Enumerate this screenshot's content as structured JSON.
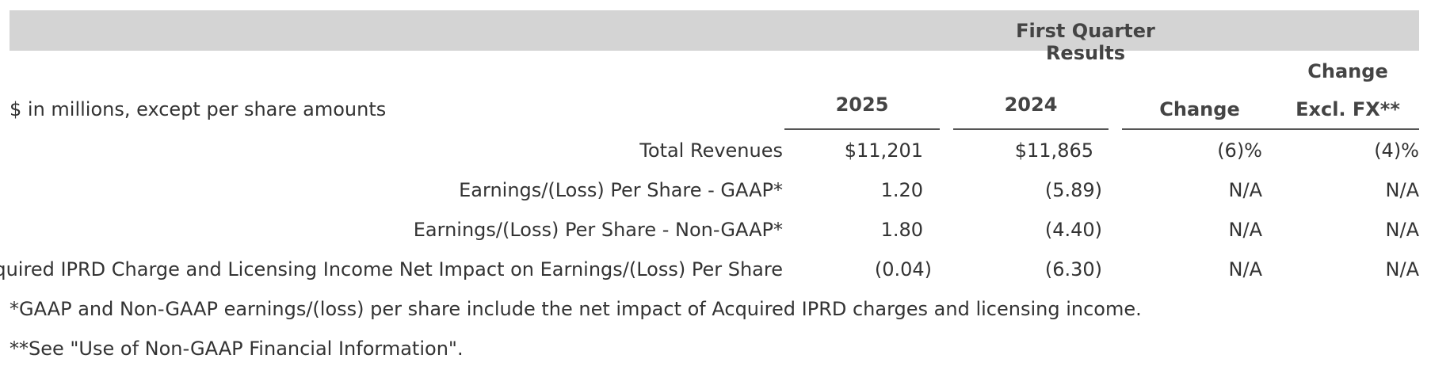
{
  "header": {
    "band_title": "First Quarter Results",
    "units": "$ in millions, except per share amounts",
    "col_2025": "2025",
    "col_2024": "2024",
    "col_change": "Change",
    "col_change_fx_line1": "Change",
    "col_change_fx_line2": "Excl. FX**"
  },
  "rows": [
    {
      "label": "Total Revenues",
      "v2025": "$11,201",
      "v2024": "$11,865",
      "change": "(6)%",
      "change_fx": "(4)%"
    },
    {
      "label": "Earnings/(Loss) Per Share - GAAP*",
      "v2025": "1.20",
      "v2024": "(5.89)",
      "change": "N/A",
      "change_fx": "N/A"
    },
    {
      "label": "Earnings/(Loss) Per Share - Non-GAAP*",
      "v2025": "1.80",
      "v2024": "(4.40)",
      "change": "N/A",
      "change_fx": "N/A"
    },
    {
      "label": "Acquired IPRD Charge and Licensing Income Net Impact on Earnings/(Loss) Per Share",
      "v2025": "(0.04)",
      "v2024": "(6.30)",
      "change": "N/A",
      "change_fx": "N/A"
    }
  ],
  "notes": {
    "note1": "*GAAP and Non-GAAP earnings/(loss) per share include the net impact of Acquired IPRD charges and licensing income.",
    "note2": "**See \"Use of Non-GAAP Financial Information\"."
  }
}
